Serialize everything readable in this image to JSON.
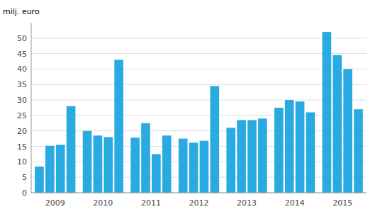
{
  "chart_data": {
    "type": "bar",
    "ylabel": "milj. euro",
    "categories": [
      "2009",
      "2010",
      "2011",
      "2012",
      "2013",
      "2014",
      "2015"
    ],
    "series": [
      {
        "color": "#29aae1",
        "values": [
          8.5,
          20.0,
          17.8,
          17.5,
          21.0,
          27.5,
          52.0
        ]
      },
      {
        "color": "#29aae1",
        "values": [
          15.2,
          18.5,
          22.5,
          16.2,
          23.5,
          30.0,
          44.5
        ]
      },
      {
        "color": "#29aae1",
        "values": [
          15.5,
          18.0,
          12.5,
          16.8,
          23.5,
          29.5,
          40.0
        ]
      },
      {
        "color": "#29aae1",
        "values": [
          28.0,
          43.0,
          18.5,
          34.5,
          24.0,
          26.0,
          27.0
        ]
      }
    ],
    "ylim": [
      0,
      55
    ],
    "yticks": [
      0,
      5,
      10,
      15,
      20,
      25,
      30,
      35,
      40,
      45,
      50
    ],
    "grid": true
  }
}
